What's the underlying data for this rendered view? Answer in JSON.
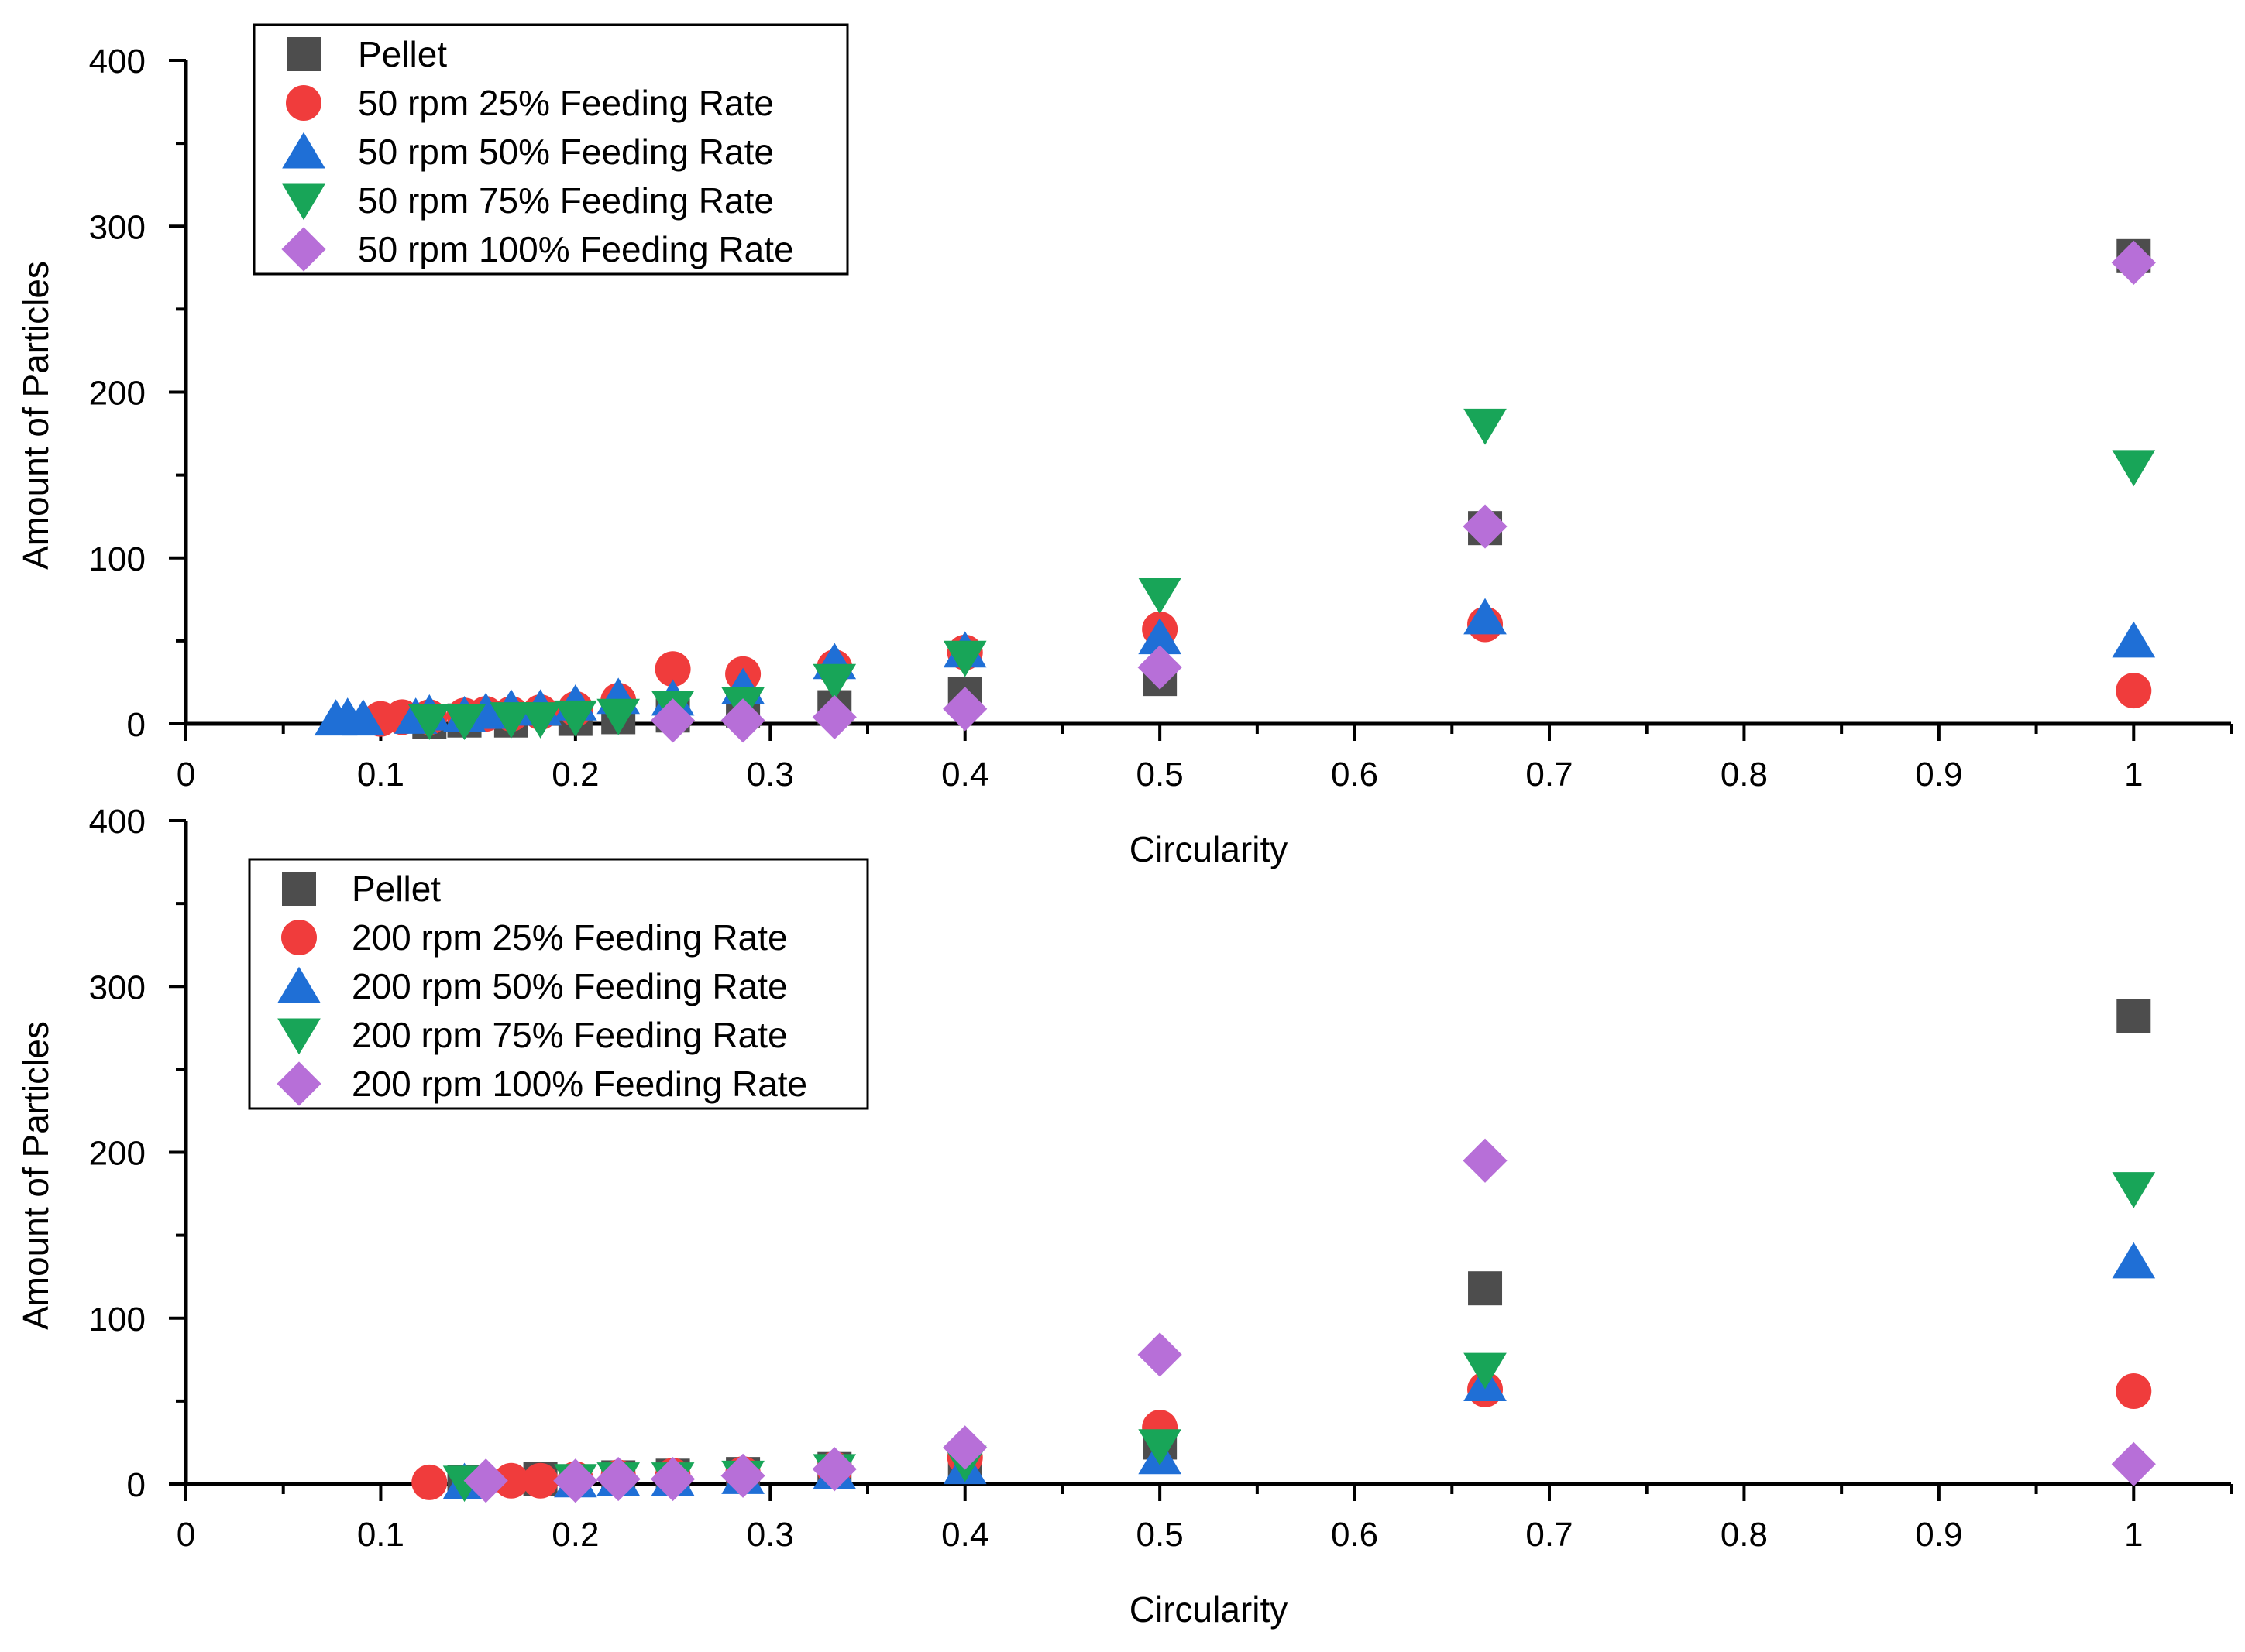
{
  "chart_data": [
    {
      "type": "scatter",
      "title": "",
      "xlabel": "Circularity",
      "ylabel": "Amount of Particles",
      "xlim": [
        0,
        1.05
      ],
      "ylim": [
        0,
        400
      ],
      "xticks": [
        "0",
        "0.1",
        "0.2",
        "0.3",
        "0.4",
        "0.5",
        "0.6",
        "0.7",
        "0.8",
        "0.9",
        "1"
      ],
      "yticks": [
        "0",
        "100",
        "200",
        "300",
        "400"
      ],
      "legend_position": "top-left",
      "grid": false,
      "series": [
        {
          "name": "Pellet",
          "marker": "square",
          "color": "#4d4d4d",
          "x": [
            0.125,
            0.143,
            0.167,
            0.2,
            0.222,
            0.25,
            0.286,
            0.333,
            0.4,
            0.5,
            0.667,
            1.0
          ],
          "y": [
            1,
            2,
            2,
            3,
            4,
            5,
            8,
            10,
            18,
            27,
            118,
            282
          ]
        },
        {
          "name": "50 rpm 25% Feeding Rate",
          "marker": "circle",
          "color": "#f03c3c",
          "x": [
            0.1,
            0.111,
            0.125,
            0.143,
            0.154,
            0.167,
            0.182,
            0.2,
            0.222,
            0.25,
            0.286,
            0.333,
            0.4,
            0.5,
            0.667,
            1.0
          ],
          "y": [
            3,
            4,
            4,
            5,
            6,
            6,
            7,
            9,
            14,
            33,
            30,
            34,
            43,
            57,
            60,
            20
          ]
        },
        {
          "name": "50 rpm 50% Feeding Rate",
          "marker": "triangle-up",
          "color": "#1f6fd6",
          "x": [
            0.077,
            0.083,
            0.091,
            0.118,
            0.125,
            0.143,
            0.154,
            0.167,
            0.182,
            0.2,
            0.222,
            0.25,
            0.286,
            0.333,
            0.4,
            0.5,
            0.667,
            1.0
          ],
          "y": [
            3,
            4,
            3,
            4,
            6,
            5,
            7,
            9,
            9,
            12,
            16,
            15,
            22,
            37,
            44,
            52,
            64,
            50
          ]
        },
        {
          "name": "50 rpm 75% Feeding Rate",
          "marker": "triangle-down",
          "color": "#18a558",
          "x": [
            0.125,
            0.143,
            0.167,
            0.182,
            0.2,
            0.222,
            0.25,
            0.286,
            0.333,
            0.4,
            0.5,
            0.667,
            1.0
          ],
          "y": [
            2,
            2,
            3,
            3,
            4,
            5,
            10,
            12,
            26,
            40,
            78,
            180,
            155
          ]
        },
        {
          "name": "50 rpm 100% Feeding Rate",
          "marker": "diamond",
          "color": "#b76fd8",
          "x": [
            0.25,
            0.286,
            0.333,
            0.4,
            0.5,
            0.667,
            1.0
          ],
          "y": [
            2,
            2,
            4,
            9,
            34,
            119,
            278
          ]
        }
      ]
    },
    {
      "type": "scatter",
      "title": "",
      "xlabel": "Circularity",
      "ylabel": "Amount of Particles",
      "xlim": [
        0,
        1.05
      ],
      "ylim": [
        0,
        400
      ],
      "xticks": [
        "0",
        "0.1",
        "0.2",
        "0.3",
        "0.4",
        "0.5",
        "0.6",
        "0.7",
        "0.8",
        "0.9",
        "1"
      ],
      "yticks": [
        "0",
        "100",
        "200",
        "300",
        "400"
      ],
      "legend_position": "top-left",
      "grid": false,
      "series": [
        {
          "name": "Pellet",
          "marker": "square",
          "color": "#4d4d4d",
          "x": [
            0.143,
            0.182,
            0.222,
            0.25,
            0.286,
            0.333,
            0.4,
            0.5,
            0.667,
            1.0
          ],
          "y": [
            1,
            3,
            4,
            5,
            6,
            9,
            13,
            25,
            118,
            282
          ]
        },
        {
          "name": "200 rpm 25% Feeding Rate",
          "marker": "circle",
          "color": "#f03c3c",
          "x": [
            0.125,
            0.167,
            0.182,
            0.2,
            0.222,
            0.25,
            0.286,
            0.333,
            0.4,
            0.5,
            0.667,
            1.0
          ],
          "y": [
            1,
            2,
            2,
            3,
            4,
            5,
            6,
            9,
            16,
            34,
            57,
            56
          ]
        },
        {
          "name": "200 rpm 50% Feeding Rate",
          "marker": "triangle-up",
          "color": "#1f6fd6",
          "x": [
            0.143,
            0.2,
            0.222,
            0.25,
            0.286,
            0.333,
            0.4,
            0.5,
            0.667,
            1.0
          ],
          "y": [
            1,
            2,
            3,
            3,
            4,
            7,
            10,
            16,
            60,
            134
          ]
        },
        {
          "name": "200 rpm 75% Feeding Rate",
          "marker": "triangle-down",
          "color": "#18a558",
          "x": [
            0.143,
            0.2,
            0.222,
            0.25,
            0.286,
            0.333,
            0.4,
            0.5,
            0.667,
            1.0
          ],
          "y": [
            1,
            2,
            3,
            3,
            4,
            8,
            13,
            23,
            69,
            178
          ]
        },
        {
          "name": "200 rpm 100% Feeding Rate",
          "marker": "diamond",
          "color": "#b76fd8",
          "x": [
            0.154,
            0.2,
            0.222,
            0.25,
            0.286,
            0.333,
            0.4,
            0.5,
            0.667,
            1.0
          ],
          "y": [
            2,
            2,
            3,
            3,
            5,
            9,
            22,
            78,
            195,
            12
          ]
        }
      ]
    }
  ]
}
